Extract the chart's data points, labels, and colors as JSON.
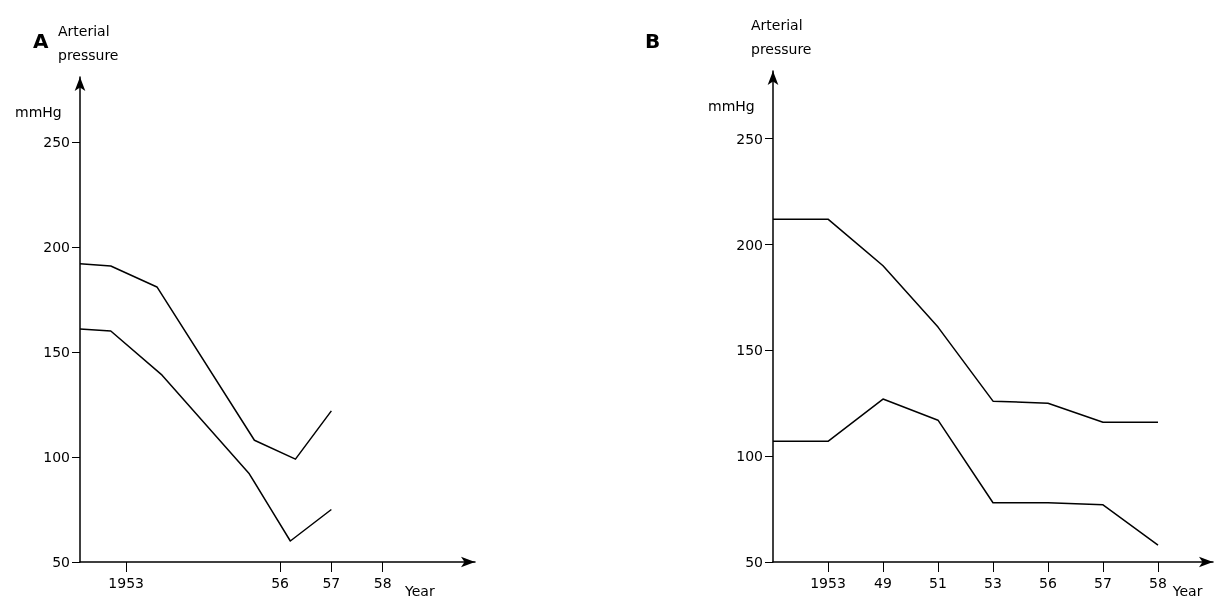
{
  "chart_data": [
    {
      "type": "line",
      "title": "A",
      "ylabel": "Arterial pressure",
      "xlabel": "Year",
      "annotations": [
        "mmHg"
      ],
      "xlim": [
        1952.1,
        1959.8
      ],
      "xticks": [
        1953,
        {
          "value": 1956,
          "label": "56"
        },
        {
          "value": 1957,
          "label": "57"
        },
        {
          "value": 1958,
          "label": "58"
        }
      ],
      "ylim": [
        50,
        281
      ],
      "yticks": [
        50,
        100,
        150,
        200,
        250
      ],
      "grid": false,
      "marker": "none",
      "line_style": "solid",
      "series": [
        {
          "color": "#000000",
          "x": [
            1952.1,
            1952.7,
            1953.6,
            1955.5,
            1956.3,
            1957
          ],
          "values": [
            192,
            191,
            181,
            108,
            99,
            122
          ]
        },
        {
          "color": "#000000",
          "x": [
            1952.1,
            1952.7,
            1953.7,
            1955.4,
            1956.2,
            1957
          ],
          "values": [
            161,
            160,
            139,
            92,
            60,
            75
          ]
        }
      ]
    },
    {
      "type": "line",
      "title": "B",
      "ylabel": "Arterial pressure",
      "xlabel": "Year",
      "annotations": [
        "mmHg"
      ],
      "categories": [
        null,
        "1953",
        "49",
        "51",
        "53",
        "56",
        "57",
        "58",
        null
      ],
      "ylim": [
        50,
        282
      ],
      "yticks": [
        50,
        100,
        150,
        200,
        250
      ],
      "grid": false,
      "marker": "none",
      "line_style": "solid",
      "series": [
        {
          "color": "#000000",
          "values": [
            212,
            212,
            190,
            161,
            126,
            125,
            116,
            116,
            null
          ]
        },
        {
          "color": "#000000",
          "values": [
            107,
            107,
            127,
            117,
            78,
            78,
            77,
            58,
            null
          ]
        }
      ]
    }
  ]
}
